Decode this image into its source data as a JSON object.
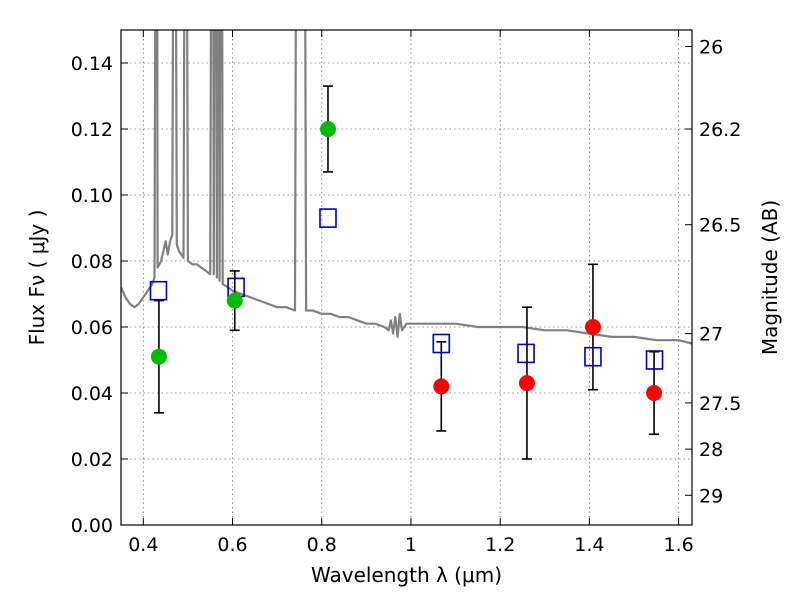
{
  "chart_data": {
    "type": "scatter",
    "title": "",
    "xlabel": "Wavelength  λ (μm)",
    "ylabel": "Flux  Fν  ( μJy )",
    "y2label": "Magnitude (AB)",
    "xlim": [
      0.35,
      1.63
    ],
    "ylim": [
      0.0,
      0.15
    ],
    "x_ticks": [
      0.4,
      0.6,
      0.8,
      1.0,
      1.2,
      1.4,
      1.6
    ],
    "x_tick_labels": [
      "0.4",
      "0.6",
      "0.8",
      "1",
      "1.2",
      "1.4",
      "1.6"
    ],
    "y_ticks": [
      0.0,
      0.02,
      0.04,
      0.06,
      0.08,
      0.1,
      0.12,
      0.14
    ],
    "y_tick_labels": [
      "0.00",
      "0.02",
      "0.04",
      "0.06",
      "0.08",
      "0.10",
      "0.12",
      "0.14"
    ],
    "y2_ticks": [
      {
        "label": "26",
        "flux": 0.145
      },
      {
        "label": "26.2",
        "flux": 0.12
      },
      {
        "label": "26.5",
        "flux": 0.091
      },
      {
        "label": "27",
        "flux": 0.058
      },
      {
        "label": "27.5",
        "flux": 0.037
      },
      {
        "label": "28",
        "flux": 0.023
      },
      {
        "label": "29",
        "flux": 0.009
      }
    ],
    "grid": true,
    "colors": {
      "model": "#808080",
      "green": "#00bb00",
      "red": "#ff0000",
      "model_box": "#0000bb",
      "errorbar": "#000000"
    },
    "series": [
      {
        "kind": "line",
        "points": [
          [
            0.35,
            0.072
          ],
          [
            0.36,
            0.069
          ],
          [
            0.37,
            0.067
          ],
          [
            0.38,
            0.066
          ],
          [
            0.39,
            0.067
          ],
          [
            0.4,
            0.069
          ],
          [
            0.41,
            0.071
          ],
          [
            0.42,
            0.073
          ],
          [
            0.425,
            0.075
          ],
          [
            0.43,
            0.3
          ],
          [
            0.432,
            0.078
          ],
          [
            0.44,
            0.08
          ],
          [
            0.445,
            0.083
          ],
          [
            0.45,
            0.086
          ],
          [
            0.455,
            0.082
          ],
          [
            0.46,
            0.086
          ],
          [
            0.465,
            0.088
          ],
          [
            0.47,
            0.3
          ],
          [
            0.475,
            0.085
          ],
          [
            0.48,
            0.083
          ],
          [
            0.49,
            0.081
          ],
          [
            0.495,
            0.3
          ],
          [
            0.5,
            0.08
          ],
          [
            0.51,
            0.079
          ],
          [
            0.52,
            0.079
          ],
          [
            0.53,
            0.078
          ],
          [
            0.54,
            0.077
          ],
          [
            0.55,
            0.076
          ],
          [
            0.555,
            0.3
          ],
          [
            0.558,
            0.076
          ],
          [
            0.562,
            0.3
          ],
          [
            0.565,
            0.075
          ],
          [
            0.568,
            0.3
          ],
          [
            0.571,
            0.074
          ],
          [
            0.575,
            0.3
          ],
          [
            0.578,
            0.073
          ],
          [
            0.59,
            0.072
          ],
          [
            0.6,
            0.071
          ],
          [
            0.62,
            0.07
          ],
          [
            0.64,
            0.069
          ],
          [
            0.66,
            0.068
          ],
          [
            0.68,
            0.067
          ],
          [
            0.7,
            0.066
          ],
          [
            0.72,
            0.066
          ],
          [
            0.74,
            0.065
          ],
          [
            0.745,
            0.3
          ],
          [
            0.755,
            0.3
          ],
          [
            0.76,
            0.3
          ],
          [
            0.765,
            0.065
          ],
          [
            0.78,
            0.065
          ],
          [
            0.8,
            0.064
          ],
          [
            0.82,
            0.064
          ],
          [
            0.84,
            0.063
          ],
          [
            0.86,
            0.063
          ],
          [
            0.88,
            0.062
          ],
          [
            0.9,
            0.061
          ],
          [
            0.92,
            0.061
          ],
          [
            0.94,
            0.06
          ],
          [
            0.95,
            0.059
          ],
          [
            0.955,
            0.062
          ],
          [
            0.96,
            0.058
          ],
          [
            0.965,
            0.063
          ],
          [
            0.97,
            0.057
          ],
          [
            0.975,
            0.064
          ],
          [
            0.98,
            0.059
          ],
          [
            0.99,
            0.061
          ],
          [
            1.0,
            0.061
          ],
          [
            1.05,
            0.061
          ],
          [
            1.1,
            0.061
          ],
          [
            1.15,
            0.06
          ],
          [
            1.2,
            0.06
          ],
          [
            1.25,
            0.06
          ],
          [
            1.3,
            0.059
          ],
          [
            1.35,
            0.059
          ],
          [
            1.4,
            0.058
          ],
          [
            1.45,
            0.057
          ],
          [
            1.5,
            0.057
          ],
          [
            1.55,
            0.056
          ],
          [
            1.6,
            0.056
          ],
          [
            1.63,
            0.055
          ]
        ]
      },
      {
        "kind": "points",
        "marker": "box",
        "points": [
          [
            0.434,
            0.071
          ],
          [
            0.608,
            0.072
          ],
          [
            0.814,
            0.093
          ],
          [
            1.068,
            0.055
          ],
          [
            1.258,
            0.052
          ],
          [
            1.408,
            0.051
          ],
          [
            1.546,
            0.05
          ]
        ]
      },
      {
        "kind": "points",
        "marker": "circle-green",
        "points": [
          [
            0.435,
            0.051,
            0.017
          ],
          [
            0.605,
            0.068,
            0.009
          ],
          [
            0.814,
            0.12,
            0.013
          ]
        ]
      },
      {
        "kind": "points",
        "marker": "circle-red",
        "points": [
          [
            1.068,
            0.042,
            0.0135
          ],
          [
            1.26,
            0.043,
            0.023
          ],
          [
            1.408,
            0.06,
            0.019
          ],
          [
            1.545,
            0.04,
            0.0125
          ]
        ]
      }
    ]
  }
}
